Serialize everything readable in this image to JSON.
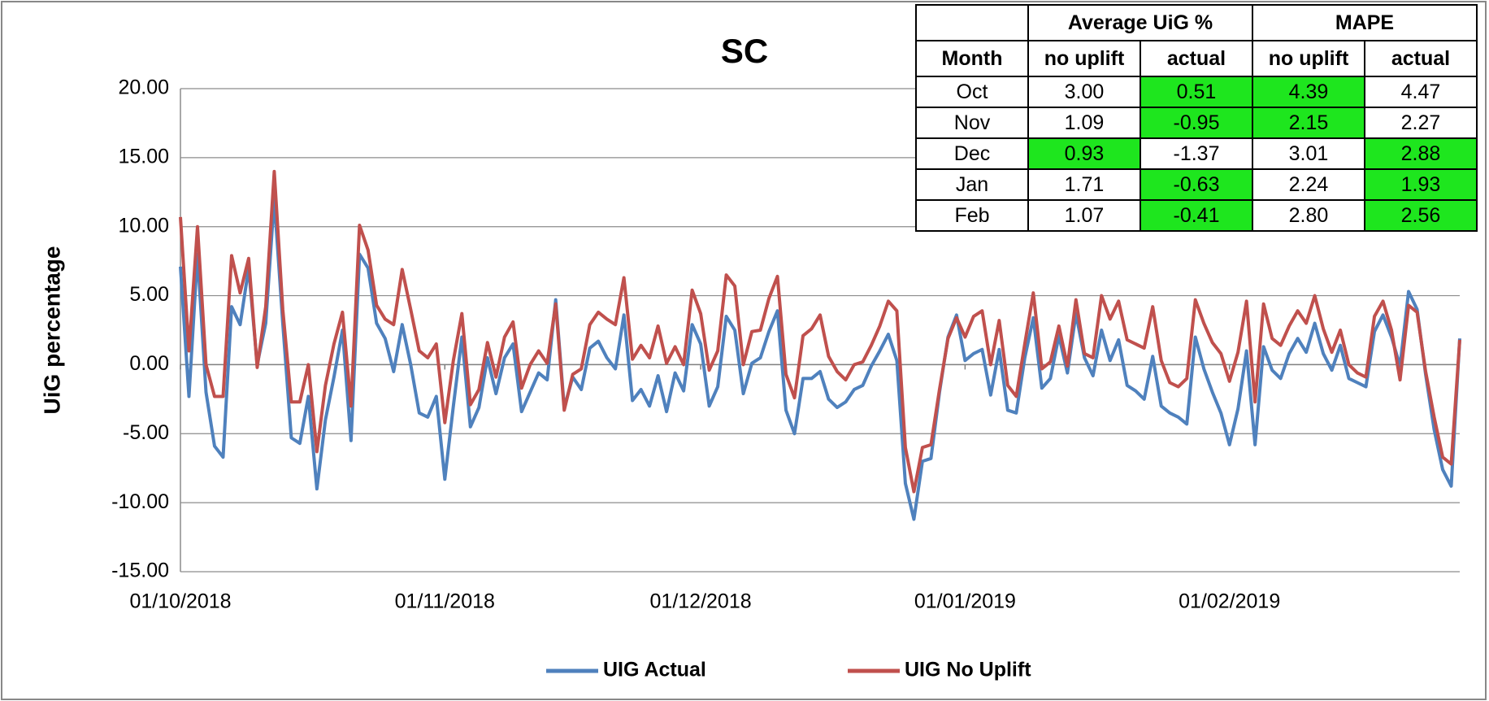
{
  "chart_data": {
    "type": "line",
    "title": "SC",
    "y_label": "UiG percentage",
    "x": [
      "01/10/2018",
      "02/10/2018",
      "03/10/2018",
      "04/10/2018",
      "05/10/2018",
      "06/10/2018",
      "07/10/2018",
      "08/10/2018",
      "09/10/2018",
      "10/10/2018",
      "11/10/2018",
      "12/10/2018",
      "13/10/2018",
      "14/10/2018",
      "15/10/2018",
      "16/10/2018",
      "17/10/2018",
      "18/10/2018",
      "19/10/2018",
      "20/10/2018",
      "21/10/2018",
      "22/10/2018",
      "23/10/2018",
      "24/10/2018",
      "25/10/2018",
      "26/10/2018",
      "27/10/2018",
      "28/10/2018",
      "29/10/2018",
      "30/10/2018",
      "31/10/2018",
      "01/11/2018",
      "02/11/2018",
      "03/11/2018",
      "04/11/2018",
      "05/11/2018",
      "06/11/2018",
      "07/11/2018",
      "08/11/2018",
      "09/11/2018",
      "10/11/2018",
      "11/11/2018",
      "12/11/2018",
      "13/11/2018",
      "14/11/2018",
      "15/11/2018",
      "16/11/2018",
      "17/11/2018",
      "18/11/2018",
      "19/11/2018",
      "20/11/2018",
      "21/11/2018",
      "22/11/2018",
      "23/11/2018",
      "24/11/2018",
      "25/11/2018",
      "26/11/2018",
      "27/11/2018",
      "28/11/2018",
      "29/11/2018",
      "30/11/2018",
      "01/12/2018",
      "02/12/2018",
      "03/12/2018",
      "04/12/2018",
      "05/12/2018",
      "06/12/2018",
      "07/12/2018",
      "08/12/2018",
      "09/12/2018",
      "10/12/2018",
      "11/12/2018",
      "12/12/2018",
      "13/12/2018",
      "14/12/2018",
      "15/12/2018",
      "16/12/2018",
      "17/12/2018",
      "18/12/2018",
      "19/12/2018",
      "20/12/2018",
      "21/12/2018",
      "22/12/2018",
      "23/12/2018",
      "24/12/2018",
      "25/12/2018",
      "26/12/2018",
      "27/12/2018",
      "28/12/2018",
      "29/12/2018",
      "30/12/2018",
      "31/12/2018",
      "01/01/2019",
      "02/01/2019",
      "03/01/2019",
      "04/01/2019",
      "05/01/2019",
      "06/01/2019",
      "07/01/2019",
      "08/01/2019",
      "09/01/2019",
      "10/01/2019",
      "11/01/2019",
      "12/01/2019",
      "13/01/2019",
      "14/01/2019",
      "15/01/2019",
      "16/01/2019",
      "17/01/2019",
      "18/01/2019",
      "19/01/2019",
      "20/01/2019",
      "21/01/2019",
      "22/01/2019",
      "23/01/2019",
      "24/01/2019",
      "25/01/2019",
      "26/01/2019",
      "27/01/2019",
      "28/01/2019",
      "29/01/2019",
      "30/01/2019",
      "31/01/2019",
      "01/02/2019",
      "02/02/2019",
      "03/02/2019",
      "04/02/2019",
      "05/02/2019",
      "06/02/2019",
      "07/02/2019",
      "08/02/2019",
      "09/02/2019",
      "10/02/2019",
      "11/02/2019",
      "12/02/2019",
      "13/02/2019",
      "14/02/2019",
      "15/02/2019",
      "16/02/2019",
      "17/02/2019",
      "18/02/2019",
      "19/02/2019",
      "20/02/2019",
      "21/02/2019",
      "22/02/2019",
      "23/02/2019",
      "24/02/2019",
      "25/02/2019",
      "26/02/2019",
      "27/02/2019",
      "28/02/2019"
    ],
    "series": [
      {
        "name": "UIG Actual",
        "color": "#4f81bd",
        "values": [
          7.1,
          -2.3,
          8.0,
          -2.0,
          -5.9,
          -6.7,
          4.2,
          2.9,
          7.0,
          0.0,
          3.0,
          12.0,
          3.0,
          -5.3,
          -5.7,
          -2.3,
          -9.0,
          -4.0,
          -0.9,
          2.5,
          -5.5,
          8.0,
          7.0,
          3.0,
          1.9,
          -0.5,
          2.9,
          0.0,
          -3.5,
          -3.8,
          -2.3,
          -8.3,
          -3.0,
          2.0,
          -4.5,
          -3.1,
          0.5,
          -2.1,
          0.5,
          1.5,
          -3.4,
          -2.0,
          -0.6,
          -1.1,
          4.7,
          -3.1,
          -0.9,
          -1.8,
          1.2,
          1.7,
          0.5,
          -0.3,
          3.6,
          -2.6,
          -1.8,
          -3.0,
          -0.8,
          -3.4,
          -0.6,
          -1.9,
          2.9,
          1.5,
          -3.0,
          -1.6,
          3.5,
          2.5,
          -2.1,
          0.1,
          0.5,
          2.4,
          3.9,
          -3.3,
          -5.0,
          -1.0,
          -1.0,
          -0.5,
          -2.5,
          -3.1,
          -2.7,
          -1.8,
          -1.5,
          -0.1,
          1.0,
          2.2,
          0.3,
          -8.6,
          -11.2,
          -7.0,
          -6.8,
          -2.0,
          2.0,
          3.6,
          0.3,
          0.8,
          1.1,
          -2.2,
          1.1,
          -3.3,
          -3.5,
          0.5,
          3.4,
          -1.7,
          -1.0,
          2.1,
          -0.6,
          3.7,
          0.5,
          -0.8,
          2.5,
          0.3,
          1.8,
          -1.5,
          -1.9,
          -2.5,
          0.6,
          -3.0,
          -3.5,
          -3.8,
          -4.3,
          2.0,
          -0.3,
          -2.0,
          -3.5,
          -5.8,
          -3.2,
          1.0,
          -5.8,
          1.3,
          -0.4,
          -1.0,
          0.8,
          1.9,
          0.9,
          3.0,
          0.8,
          -0.4,
          1.4,
          -1.0,
          -1.3,
          -1.6,
          2.4,
          3.6,
          2.0,
          -0.1,
          5.3,
          4.0,
          -0.7,
          -4.7,
          -7.6,
          -8.8,
          1.9
        ]
      },
      {
        "name": "UIG No Uplift",
        "color": "#c0504d",
        "values": [
          10.7,
          1.0,
          10.0,
          0.0,
          -2.3,
          -2.3,
          7.9,
          5.2,
          7.7,
          -0.2,
          4.2,
          14.0,
          4.0,
          -2.7,
          -2.7,
          0.0,
          -6.3,
          -1.5,
          1.5,
          3.8,
          -3.0,
          10.1,
          8.3,
          4.3,
          3.3,
          2.9,
          6.9,
          4.0,
          1.0,
          0.5,
          1.5,
          -4.2,
          0.3,
          3.7,
          -2.9,
          -1.8,
          1.6,
          -0.9,
          2.0,
          3.1,
          -1.7,
          0.0,
          1.0,
          0.1,
          4.4,
          -3.3,
          -0.7,
          -0.3,
          2.9,
          3.8,
          3.3,
          2.9,
          6.3,
          0.4,
          1.4,
          0.5,
          2.8,
          0.1,
          1.3,
          0.0,
          5.4,
          3.7,
          -0.4,
          1.0,
          6.5,
          5.7,
          0.0,
          2.4,
          2.5,
          4.8,
          6.4,
          -0.7,
          -2.4,
          2.1,
          2.6,
          3.6,
          0.6,
          -0.5,
          -1.1,
          0.0,
          0.2,
          1.4,
          2.8,
          4.6,
          3.9,
          -6.0,
          -9.2,
          -6.0,
          -5.8,
          -1.8,
          1.9,
          3.4,
          2.0,
          3.5,
          3.9,
          0.0,
          3.2,
          -1.5,
          -2.3,
          1.5,
          5.2,
          -0.3,
          0.2,
          2.8,
          -0.1,
          4.7,
          0.8,
          0.5,
          5.0,
          3.3,
          4.6,
          1.8,
          1.5,
          1.2,
          4.2,
          0.3,
          -1.3,
          -1.6,
          -1.0,
          4.7,
          3.0,
          1.6,
          0.8,
          -1.2,
          0.9,
          4.6,
          -2.7,
          4.4,
          1.9,
          1.4,
          2.8,
          3.9,
          3.0,
          5.0,
          2.6,
          0.9,
          2.5,
          0.0,
          -0.6,
          -0.9,
          3.5,
          4.6,
          2.5,
          -1.1,
          4.3,
          3.8,
          -0.5,
          -3.8,
          -6.7,
          -7.2,
          1.8
        ]
      }
    ],
    "ylim": [
      -15,
      20
    ],
    "yticks": [
      {
        "value": -15,
        "label": "-15.00"
      },
      {
        "value": -10,
        "label": "-10.00"
      },
      {
        "value": -5,
        "label": "-5.00"
      },
      {
        "value": 0,
        "label": "0.00"
      },
      {
        "value": 5,
        "label": "5.00"
      },
      {
        "value": 10,
        "label": "10.00"
      },
      {
        "value": 15,
        "label": "15.00"
      },
      {
        "value": 20,
        "label": "20.00"
      }
    ],
    "xticks": [
      "01/10/2018",
      "01/11/2018",
      "01/12/2018",
      "01/01/2019",
      "01/02/2019"
    ],
    "grid": true,
    "legend": "bottom"
  },
  "table": {
    "groups": [
      "Average UiG %",
      "MAPE"
    ],
    "columns": [
      "Month",
      "no uplift",
      "actual",
      "no uplift",
      "actual"
    ],
    "rows": [
      [
        "Oct",
        "3.00",
        "0.51",
        "4.39",
        "4.47"
      ],
      [
        "Nov",
        "1.09",
        "-0.95",
        "2.15",
        "2.27"
      ],
      [
        "Dec",
        "0.93",
        "-1.37",
        "3.01",
        "2.88"
      ],
      [
        "Jan",
        "1.71",
        "-0.63",
        "2.24",
        "1.93"
      ],
      [
        "Feb",
        "1.07",
        "-0.41",
        "2.80",
        "2.56"
      ]
    ],
    "highlighted": [
      [
        2,
        3
      ],
      [
        2,
        3
      ],
      [
        1,
        4
      ],
      [
        2,
        4
      ],
      [
        2,
        4
      ]
    ],
    "highlight_color": "#1ee61e"
  }
}
